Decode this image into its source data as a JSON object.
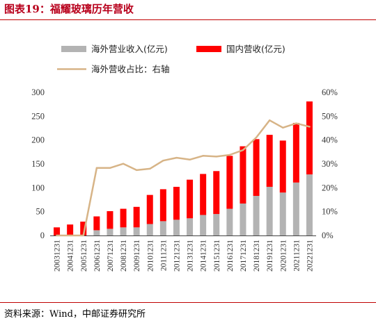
{
  "title": "图表19：福耀玻璃历年营收",
  "source": "资料来源：Wind，中邮证券研究所",
  "colors": {
    "overseas": "#b3b3b3",
    "domestic": "#ff0000",
    "ratio": "#d7b487",
    "accent": "#c00000"
  },
  "chart_data": {
    "type": "bar",
    "categories": [
      "20031231",
      "20041231",
      "20051231",
      "20061231",
      "20071231",
      "20081231",
      "20091231",
      "20101231",
      "20111231",
      "20121231",
      "20131231",
      "20141231",
      "20151231",
      "20161231",
      "20171231",
      "20181231",
      "20191231",
      "20201231",
      "20211231",
      "20221231"
    ],
    "series": [
      {
        "name": "海外营业收入(亿元)",
        "type": "bar",
        "stack": "revenue",
        "axis": "left",
        "values": [
          0,
          0,
          0,
          11,
          14,
          17,
          17,
          24,
          30,
          33,
          36,
          43,
          45,
          56,
          67,
          83,
          102,
          90,
          111,
          128
        ]
      },
      {
        "name": "国内营收(亿元)",
        "type": "bar",
        "stack": "revenue",
        "axis": "left",
        "values": [
          17,
          23,
          29,
          29,
          37,
          39,
          43,
          61,
          67,
          69,
          81,
          86,
          90,
          111,
          120,
          119,
          109,
          109,
          125,
          153
        ]
      },
      {
        "name": "海外营收占比：右轴",
        "type": "line",
        "axis": "right",
        "values": [
          0,
          0,
          0,
          28.3,
          28.3,
          30.1,
          27.4,
          28.0,
          31.4,
          32.6,
          31.8,
          33.4,
          33.1,
          33.8,
          35.8,
          41.1,
          48.3,
          45.2,
          47.0,
          45.6
        ]
      }
    ],
    "yleft": {
      "lim": [
        0,
        300
      ],
      "ticks": [
        "0",
        "50",
        "100",
        "150",
        "200",
        "250",
        "300"
      ]
    },
    "yright": {
      "lim": [
        0,
        60
      ],
      "ticks": [
        "0%",
        "10%",
        "20%",
        "30%",
        "40%",
        "50%",
        "60%"
      ]
    },
    "legend_position": "top",
    "grid": false
  }
}
